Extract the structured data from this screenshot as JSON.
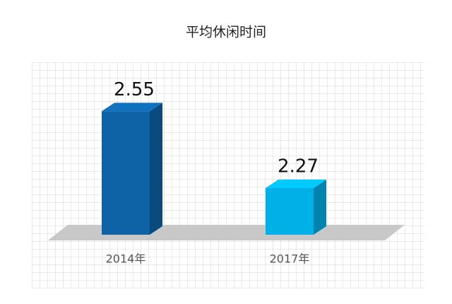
{
  "chart_data": {
    "type": "bar3d",
    "title": "平均休闲时间",
    "categories": [
      "2014年",
      "2017年"
    ],
    "values": [
      2.55,
      2.27
    ],
    "colors": [
      "#0e62a6",
      "#00b0e6"
    ],
    "ylim": [
      2.1,
      2.6
    ]
  }
}
